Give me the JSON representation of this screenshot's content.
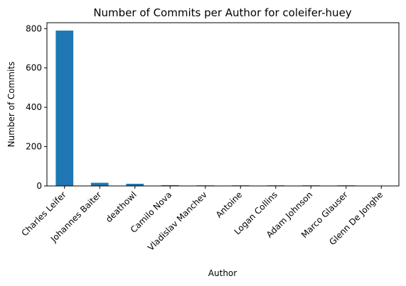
{
  "chart_data": {
    "type": "bar",
    "title": "Number of Commits per Author for coleifer-huey",
    "xlabel": "Author",
    "ylabel": "Number of Commits",
    "categories": [
      "Charles Leifer",
      "Johannes Baiter",
      "deathowl",
      "Camilo Nova",
      "Vladislav Manchev",
      "Antoine",
      "Logan Collins",
      "Adam Johnson",
      "Marco Glauser",
      "Glenn De Jonghe"
    ],
    "values": [
      790,
      16,
      11,
      4,
      3,
      3,
      3,
      3,
      3,
      1
    ],
    "ylim": [
      0,
      830
    ],
    "yticks": [
      0,
      200,
      400,
      600,
      800
    ],
    "grid": false,
    "bar_color": "#1f77b4"
  }
}
